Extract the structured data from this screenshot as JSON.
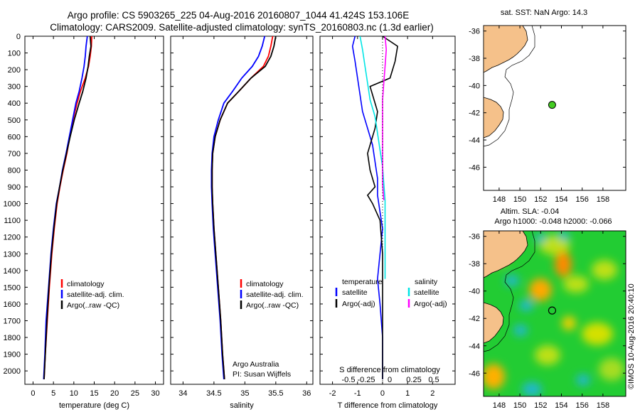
{
  "header": {
    "line1": "Argo profile: CS 5903265_225 04-Aug-2016 20160807_1044 41.424S 153.106E",
    "line2": "Climatology: CARS2009. Satellite-adjusted climatology: synTS_20160803.nc (1.3d earlier)"
  },
  "colors": {
    "climatology": "#ff0000",
    "satellite": "#0000ff",
    "argo": "#000000",
    "satellite_salinity": "#00e5e5",
    "argo_salinity_diff": "#ff00ff",
    "land": "#f5c18a",
    "marker_fill": "#44cc22"
  },
  "depth_ticks": [
    "0",
    "100",
    "200",
    "300",
    "400",
    "500",
    "600",
    "700",
    "800",
    "900",
    "1000",
    "1100",
    "1200",
    "1300",
    "1400",
    "1500",
    "1600",
    "1700",
    "1800",
    "1900",
    "2000"
  ],
  "chart_data": [
    {
      "type": "line",
      "id": "temperature",
      "xlabel": "temperature (deg C)",
      "ylabel": "",
      "xlim": [
        -2,
        32
      ],
      "ylim": [
        2080,
        0
      ],
      "xticks": [
        0,
        5,
        10,
        15,
        20,
        25,
        30
      ],
      "xtick_labels": [
        "0",
        "5",
        "10",
        "15",
        "20",
        "25",
        "30"
      ],
      "legend": [
        "climatology",
        "satellite-adj. clim.",
        "Argo(..raw -QC)"
      ],
      "series": [
        {
          "name": "climatology",
          "color": "#ff0000",
          "x": [
            14.4,
            14.3,
            14.0,
            13.6,
            12.8,
            11.6,
            10.8,
            9.8,
            9.0,
            8.3,
            7.4,
            6.6,
            5.9,
            5.2,
            4.6,
            4.0,
            3.5,
            3.0,
            2.7
          ],
          "y": [
            0,
            60,
            120,
            180,
            250,
            330,
            400,
            500,
            600,
            700,
            800,
            900,
            1000,
            1150,
            1300,
            1500,
            1700,
            1900,
            2050
          ]
        },
        {
          "name": "satellite-adj. clim.",
          "color": "#0000ff",
          "x": [
            13.3,
            13.0,
            12.8,
            12.5,
            12.0,
            11.3,
            10.5,
            9.7,
            8.9,
            8.1,
            7.2,
            6.5,
            5.7,
            5.0,
            4.4,
            3.8,
            3.2,
            2.9,
            2.6
          ],
          "y": [
            0,
            60,
            120,
            180,
            250,
            330,
            400,
            500,
            600,
            700,
            800,
            900,
            1000,
            1150,
            1300,
            1500,
            1700,
            1900,
            2050
          ]
        },
        {
          "name": "Argo(..raw -QC)",
          "color": "#000000",
          "x": [
            14.0,
            14.2,
            13.8,
            13.5,
            13.0,
            12.2,
            11.3,
            10.1,
            9.1,
            8.2,
            7.3,
            6.5,
            5.8,
            5.1,
            4.5,
            3.9,
            3.4,
            3.0,
            2.7
          ],
          "y": [
            0,
            60,
            120,
            180,
            250,
            330,
            400,
            500,
            600,
            700,
            800,
            900,
            1000,
            1150,
            1300,
            1500,
            1700,
            1900,
            2050
          ]
        }
      ]
    },
    {
      "type": "line",
      "id": "salinity",
      "xlabel": "salinity",
      "ylabel": "",
      "xlim": [
        33.8,
        36.1
      ],
      "ylim": [
        2080,
        0
      ],
      "xticks": [
        34,
        34.5,
        35,
        35.5,
        36
      ],
      "xtick_labels": [
        "34",
        "34.5",
        "35",
        "35.5",
        "36"
      ],
      "legend": [
        "climatology",
        "satellite-adj. clim.",
        "Argo(..raw -QC)"
      ],
      "annotation": [
        "Argo Australia",
        "PI: Susan Wijffels"
      ],
      "series": [
        {
          "name": "climatology",
          "color": "#ff0000",
          "x": [
            35.45,
            35.42,
            35.38,
            35.3,
            35.1,
            34.9,
            34.72,
            34.6,
            34.52,
            34.48,
            34.47,
            34.47,
            34.48,
            34.5,
            34.53,
            34.57,
            34.61,
            34.64,
            34.67
          ],
          "y": [
            0,
            60,
            120,
            180,
            250,
            330,
            400,
            500,
            600,
            700,
            800,
            900,
            1000,
            1150,
            1300,
            1500,
            1700,
            1900,
            2050
          ]
        },
        {
          "name": "satellite-adj. clim.",
          "color": "#0000ff",
          "x": [
            35.32,
            35.28,
            35.22,
            35.12,
            34.95,
            34.8,
            34.66,
            34.57,
            34.5,
            34.47,
            34.46,
            34.46,
            34.47,
            34.49,
            34.52,
            34.56,
            34.6,
            34.63,
            34.66
          ],
          "y": [
            0,
            60,
            120,
            180,
            250,
            330,
            400,
            500,
            600,
            700,
            800,
            900,
            1000,
            1150,
            1300,
            1500,
            1700,
            1900,
            2050
          ]
        },
        {
          "name": "Argo(..raw -QC)",
          "color": "#000000",
          "x": [
            35.5,
            35.47,
            35.42,
            35.33,
            35.1,
            34.9,
            34.72,
            34.6,
            34.52,
            34.48,
            34.47,
            34.47,
            34.48,
            34.5,
            34.53,
            34.57,
            34.61,
            34.64,
            34.67
          ],
          "y": [
            0,
            60,
            120,
            180,
            250,
            330,
            400,
            500,
            600,
            700,
            800,
            900,
            1000,
            1150,
            1300,
            1500,
            1700,
            1900,
            2050
          ]
        }
      ]
    },
    {
      "type": "line",
      "id": "difference",
      "xlabel": "T difference from climatology",
      "top_label": "S difference from climatology",
      "xlim": [
        -2.5,
        2.9
      ],
      "ylim": [
        2080,
        0
      ],
      "xticks": [
        -2,
        -1,
        0,
        1,
        2
      ],
      "xtick_labels": [
        "-2",
        "-1",
        "0",
        "1",
        "2"
      ],
      "sticks": [
        -0.5,
        -0.25,
        0,
        0.25,
        0.5
      ],
      "stick_labels": [
        "-0.5",
        "-0.25",
        "0",
        "0.25",
        "0.5"
      ],
      "legend_left_title": "temperature",
      "legend_right_title": "salinity",
      "legend_left": [
        "satellite",
        "Argo(-adj)"
      ],
      "legend_right": [
        "satellite",
        "Argo(-adj)"
      ],
      "series": [
        {
          "name": "satellite",
          "color": "#0000ff",
          "x": [
            -1.1,
            -1.2,
            -1.1,
            -1.0,
            -0.9,
            -0.8,
            -0.6,
            -0.4,
            -0.3,
            -0.2,
            -0.2,
            -0.1,
            0.0,
            -0.1,
            -0.2,
            -0.1,
            0.0,
            0.0
          ],
          "y": [
            0,
            60,
            150,
            250,
            350,
            450,
            550,
            650,
            750,
            850,
            950,
            1050,
            1150,
            1300,
            1450,
            1600,
            1800,
            2050
          ]
        },
        {
          "name": "Argo(-adj)",
          "color": "#000000",
          "x": [
            0.0,
            0.6,
            0.5,
            0.3,
            -0.5,
            -0.4,
            -0.2,
            -0.3,
            -0.6,
            -0.5,
            -0.3,
            -0.6,
            -0.4,
            -0.1,
            0.0,
            0.0,
            0.0,
            0.0
          ],
          "y": [
            0,
            60,
            150,
            250,
            300,
            350,
            450,
            550,
            700,
            800,
            900,
            950,
            1000,
            1100,
            1300,
            1500,
            1800,
            2050
          ]
        },
        {
          "name": "satellite",
          "color": "#00e5e5",
          "x": [
            -0.9,
            -0.8,
            -0.7,
            -0.6,
            -0.5,
            -0.3,
            -0.2,
            -0.1,
            0.0,
            0.05,
            0.1,
            0.1,
            0.1,
            0.1,
            0.1,
            0.1
          ],
          "y": [
            0,
            80,
            180,
            280,
            380,
            480,
            580,
            680,
            780,
            880,
            980,
            1080,
            1180,
            1280,
            1380,
            1450
          ]
        },
        {
          "name": "Argo(-adj)",
          "color": "#ff00ff",
          "x": [
            0.1,
            0.15,
            0.1,
            0.05,
            0.0,
            0.0,
            0.0,
            0.0,
            0.0,
            0.0,
            0.05
          ],
          "y": [
            0,
            80,
            180,
            280,
            380,
            480,
            580,
            680,
            780,
            880,
            980
          ]
        }
      ]
    },
    {
      "type": "scatter",
      "id": "map-sst",
      "title": "sat. SST: NaN Argo: 14.3",
      "xlim": [
        146.5,
        160.2
      ],
      "ylim": [
        -47.7,
        -35.6
      ],
      "xticks": [
        148,
        150,
        152,
        154,
        156,
        158
      ],
      "yticks": [
        -36,
        -38,
        -40,
        -42,
        -44,
        -46
      ],
      "xtick_labels": [
        "148",
        "150",
        "152",
        "154",
        "156",
        "158"
      ],
      "ytick_labels": [
        "-36",
        "-38",
        "-40",
        "-42",
        "-44",
        "-46"
      ],
      "point": {
        "x": 153.106,
        "y": -41.424
      }
    },
    {
      "type": "heatmap",
      "id": "map-sla",
      "title_line1": "Altim. SLA: -0.04",
      "title_line2": "Argo h1000: -0.048 h2000: -0.066",
      "xlim": [
        146.5,
        160.2
      ],
      "ylim": [
        -47.7,
        -35.6
      ],
      "xticks": [
        148,
        150,
        152,
        154,
        156,
        158
      ],
      "yticks": [
        -36,
        -38,
        -40,
        -42,
        -44,
        -46
      ],
      "xtick_labels": [
        "148",
        "150",
        "152",
        "154",
        "156",
        "158"
      ],
      "ytick_labels": [
        "-36",
        "-38",
        "-40",
        "-42",
        "-44",
        "-46"
      ],
      "point": {
        "x": 153.106,
        "y": -41.424
      },
      "credit": "©IMOS 10-Aug-2016 20:40:10"
    }
  ]
}
